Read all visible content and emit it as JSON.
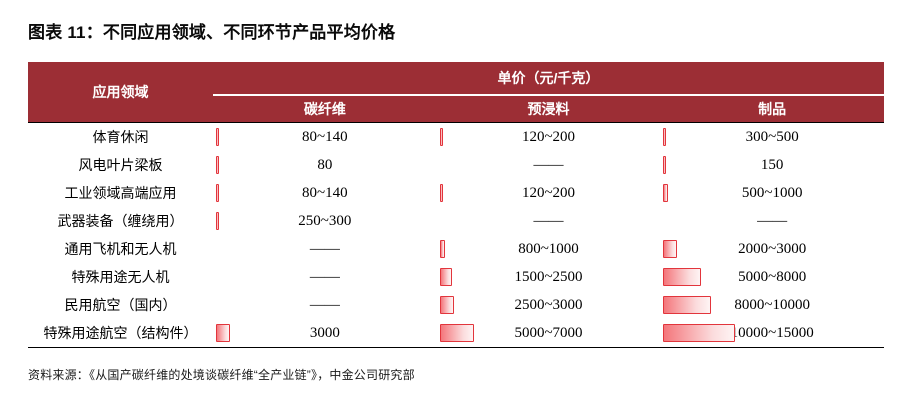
{
  "page": {
    "title": "图表 11：不同应用领域、不同环节产品平均价格",
    "source": "资料来源：《从国产碳纤维的处境谈碳纤维“全产业链”》，中金公司研究部"
  },
  "colors": {
    "header_bg": "#9C2E35",
    "header_text": "#FFFFFF",
    "bar_border": "#E2353C",
    "bar_fill_start": "#F4767B",
    "bar_fill_end": "#FEF4F4",
    "table_rule": "#000000"
  },
  "chart_data": {
    "type": "table",
    "title": "不同应用领域、不同环节产品平均价格",
    "row_header": "应用领域",
    "unit_header": "单价（元/千克）",
    "columns": [
      "碳纤维",
      "预浸料",
      "制品"
    ],
    "rows": [
      {
        "label": "体育休闲",
        "values": [
          "80~140",
          "120~200",
          "300~500"
        ],
        "bar_values": [
          140,
          200,
          500
        ]
      },
      {
        "label": "风电叶片梁板",
        "values": [
          "80",
          "——",
          "150"
        ],
        "bar_values": [
          80,
          null,
          150
        ]
      },
      {
        "label": "工业领域高端应用",
        "values": [
          "80~140",
          "120~200",
          "500~1000"
        ],
        "bar_values": [
          140,
          200,
          1000
        ]
      },
      {
        "label": "武器装备（缠绕用）",
        "values": [
          "250~300",
          "——",
          "——"
        ],
        "bar_values": [
          300,
          null,
          null
        ]
      },
      {
        "label": "通用飞机和无人机",
        "values": [
          "——",
          "800~1000",
          "2000~3000"
        ],
        "bar_values": [
          null,
          1000,
          3000
        ]
      },
      {
        "label": "特殊用途无人机",
        "values": [
          "——",
          "1500~2500",
          "5000~8000"
        ],
        "bar_values": [
          null,
          2500,
          8000
        ]
      },
      {
        "label": "民用航空（国内）",
        "values": [
          "——",
          "2500~3000",
          "8000~10000"
        ],
        "bar_values": [
          null,
          3000,
          10000
        ]
      },
      {
        "label": "特殊用途航空（结构件）",
        "values": [
          "3000",
          "5000~7000",
          "10000~15000"
        ],
        "bar_values": [
          3000,
          7000,
          15000
        ]
      }
    ]
  }
}
